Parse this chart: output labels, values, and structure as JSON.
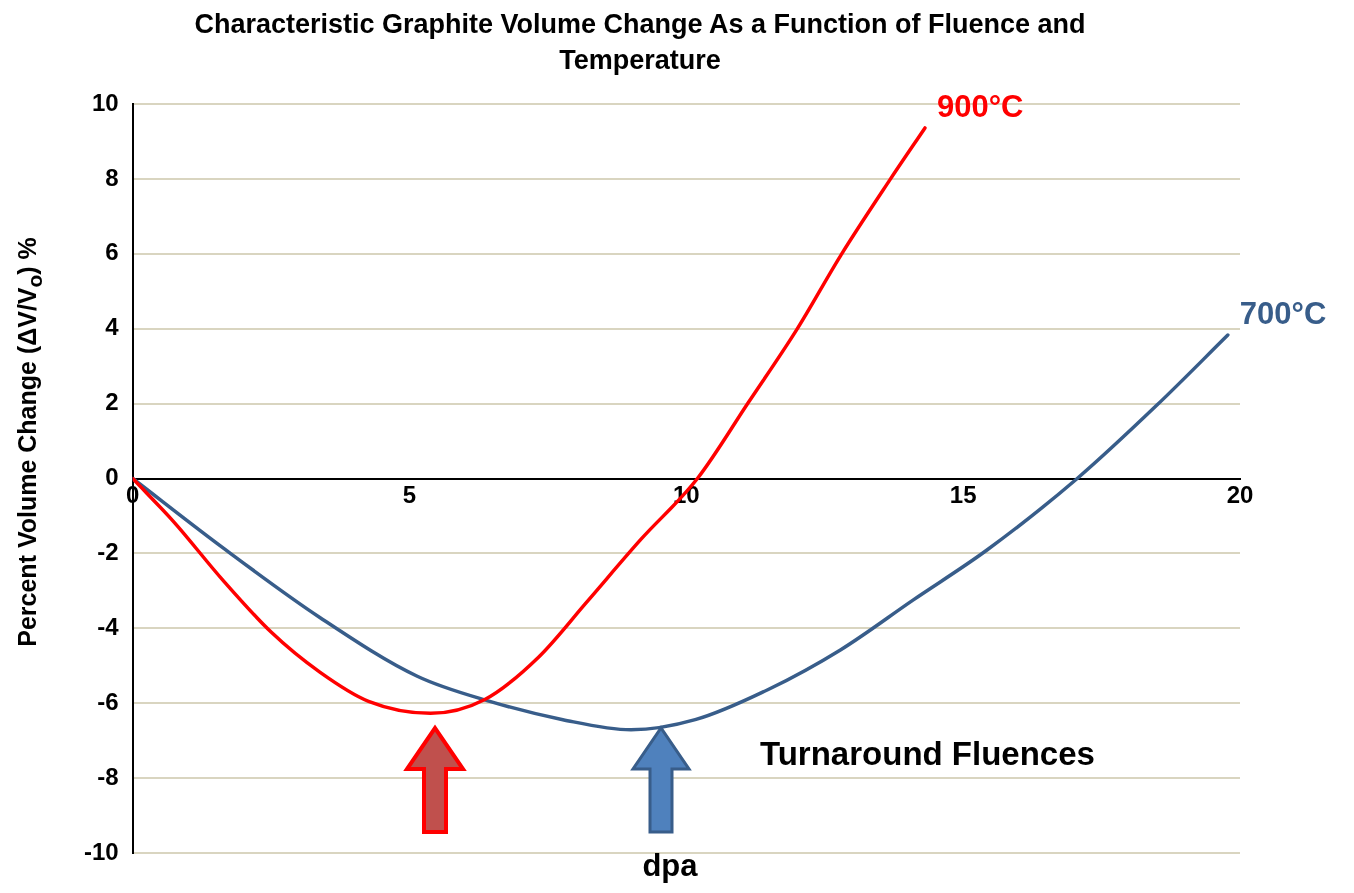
{
  "chart_data": {
    "type": "line",
    "title": "Characteristic  Graphite Volume Change As a Function of Fluence and Temperature",
    "xlabel": "dpa",
    "ylabel": "Percent Volume Change (ΔV/V$_{o}$) %",
    "xlim": [
      0,
      20
    ],
    "xticks": [
      0,
      5,
      10,
      15,
      20
    ],
    "ylim": [
      -10,
      10
    ],
    "yticks": [
      -10,
      -8,
      -6,
      -4,
      -2,
      0,
      2,
      4,
      6,
      8,
      10
    ],
    "grid": "y",
    "legend": false,
    "marker": "none",
    "line_style": "solid",
    "annotations": [
      "Turnaround Fluences"
    ],
    "series": [
      {
        "name": "900°C",
        "color": "#ff0000",
        "x": [
          0,
          0.75,
          1.62,
          2.5,
          3.38,
          4.26,
          5.38,
          6.36,
          7.33,
          8.2,
          9.17,
          10.2,
          11.12,
          12.0,
          12.79,
          13.67,
          14.31
        ],
        "values": [
          0,
          -1.17,
          -2.7,
          -4.1,
          -5.17,
          -5.95,
          -6.27,
          -5.9,
          -4.77,
          -3.3,
          -1.64,
          0,
          2.03,
          3.99,
          5.96,
          7.96,
          9.36
        ]
      },
      {
        "name": "700°C",
        "color": "#385d8a",
        "x": [
          0,
          1.62,
          3.38,
          5.14,
          6.45,
          7.77,
          9.0,
          10.16,
          11.47,
          12.79,
          14.1,
          15.43,
          17.06,
          18.5,
          19.78
        ],
        "values": [
          0,
          -1.84,
          -3.71,
          -5.28,
          -5.95,
          -6.44,
          -6.71,
          -6.44,
          -5.64,
          -4.57,
          -3.24,
          -1.91,
          0,
          1.96,
          3.83
        ]
      }
    ]
  }
}
